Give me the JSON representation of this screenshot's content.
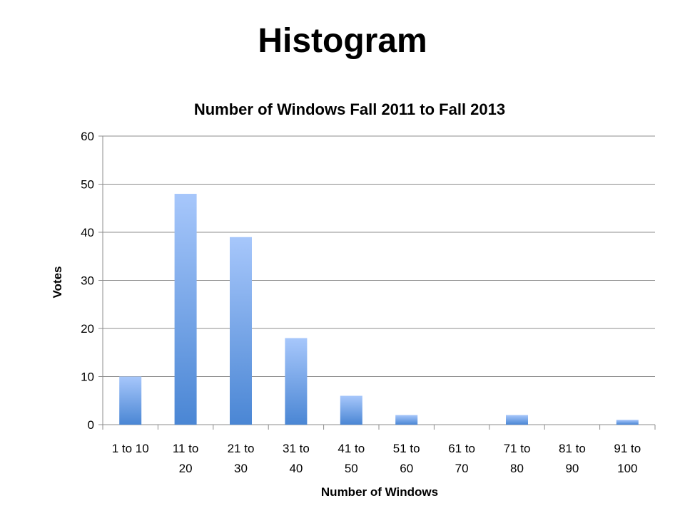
{
  "slide": {
    "title": "Histogram"
  },
  "chart_data": {
    "type": "bar",
    "title": "Number of Windows Fall 2011 to Fall 2013",
    "xlabel": "Number of Windows",
    "ylabel": "Votes",
    "categories": [
      "1 to 10",
      "11 to 20",
      "21 to 30",
      "31 to 40",
      "41 to 50",
      "51 to 60",
      "61 to 70",
      "71 to 80",
      "81 to 90",
      "91 to 100"
    ],
    "values": [
      10,
      48,
      39,
      18,
      6,
      2,
      0,
      2,
      0,
      1
    ],
    "ylim": [
      0,
      60
    ],
    "yticks": [
      0,
      10,
      20,
      30,
      40,
      50,
      60
    ],
    "grid": true,
    "legend": "none",
    "colors": {
      "bar_top": "#a7c7fb",
      "bar_bottom": "#4a86d4"
    }
  }
}
